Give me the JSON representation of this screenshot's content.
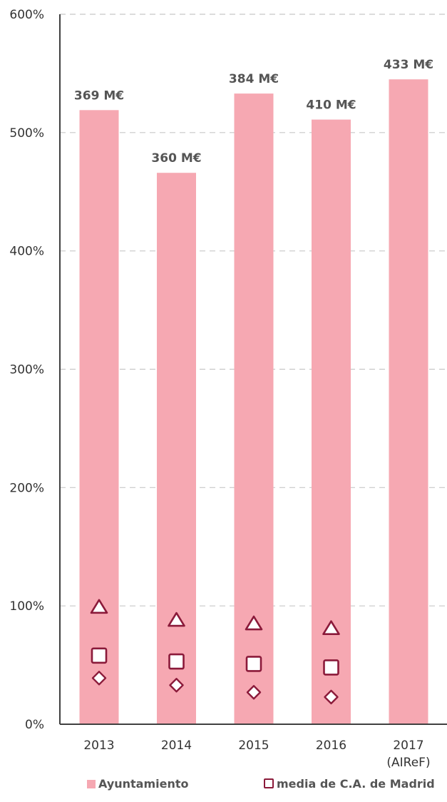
{
  "chart_data": {
    "type": "bar",
    "categories": [
      "2013",
      "2014",
      "2015",
      "2016",
      "2017"
    ],
    "category_sublabels": [
      "",
      "",
      "",
      "",
      "(AIReF)"
    ],
    "ylim": [
      0,
      600
    ],
    "yticks": [
      "0%",
      "100%",
      "200%",
      "300%",
      "400%",
      "500%",
      "600%"
    ],
    "ytick_values": [
      0,
      100,
      200,
      300,
      400,
      500,
      600
    ],
    "grid": true,
    "series": [
      {
        "name": "Ayuntamiento",
        "kind": "bar",
        "color": "#f6a8b2",
        "values": [
          519,
          466,
          533,
          511,
          545
        ],
        "labels": [
          "369 M€",
          "360 M€",
          "384 M€",
          "410 M€",
          "433 M€"
        ]
      },
      {
        "name": "media de C.A. de Madrid",
        "kind": "marker",
        "marker": "square",
        "color": "#8b1a3a",
        "values": [
          58,
          53,
          51,
          48,
          null
        ]
      },
      {
        "name": "",
        "kind": "marker",
        "marker": "triangle",
        "color": "#8b1a3a",
        "values": [
          99,
          88,
          85,
          81,
          null
        ]
      },
      {
        "name": "",
        "kind": "marker",
        "marker": "diamond",
        "color": "#8b1a3a",
        "values": [
          39,
          33,
          27,
          23,
          null
        ]
      }
    ],
    "legend_position": "bottom"
  },
  "legend": {
    "items": [
      {
        "label": "Ayuntamiento",
        "color": "#f6a8b2"
      },
      {
        "label": "media de C.A. de Madrid",
        "color": "#8b1a3a"
      }
    ]
  }
}
